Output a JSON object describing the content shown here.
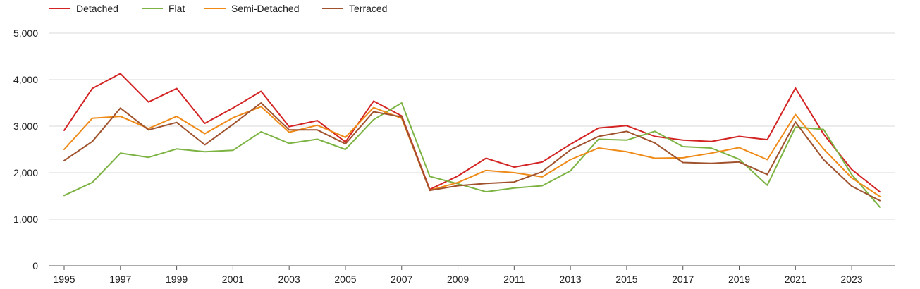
{
  "chart_data": {
    "type": "line",
    "title": "",
    "xlabel": "",
    "ylabel": "",
    "x": [
      1995,
      1996,
      1997,
      1998,
      1999,
      2000,
      2001,
      2002,
      2003,
      2004,
      2005,
      2006,
      2007,
      2008,
      2009,
      2010,
      2011,
      2012,
      2013,
      2014,
      2015,
      2016,
      2017,
      2018,
      2019,
      2020,
      2021,
      2022,
      2023,
      2024
    ],
    "x_tick_labels": [
      "1995",
      "1997",
      "1999",
      "2001",
      "2003",
      "2005",
      "2007",
      "2009",
      "2011",
      "2013",
      "2015",
      "2017",
      "2019",
      "2021",
      "2023"
    ],
    "y_tick_labels": [
      "0",
      "1,000",
      "2,000",
      "3,000",
      "4,000",
      "5,000"
    ],
    "ylim": [
      0,
      5000
    ],
    "grid": "horizontal",
    "legend_position": "top-left",
    "series": [
      {
        "name": "Detached",
        "color": "#d32323",
        "values": [
          2910,
          3810,
          4130,
          3520,
          3810,
          3060,
          3390,
          3750,
          2990,
          3120,
          2660,
          3540,
          3220,
          1640,
          1930,
          2310,
          2120,
          2230,
          2610,
          2960,
          3010,
          2780,
          2700,
          2670,
          2780,
          2710,
          3820,
          2830,
          2070,
          1590
        ]
      },
      {
        "name": "Flat",
        "color": "#7cb342",
        "values": [
          1510,
          1790,
          2420,
          2330,
          2510,
          2450,
          2480,
          2880,
          2630,
          2720,
          2500,
          3140,
          3500,
          1920,
          1760,
          1590,
          1670,
          1720,
          2040,
          2720,
          2700,
          2890,
          2560,
          2530,
          2290,
          1730,
          2980,
          2930,
          1960,
          1260
        ]
      },
      {
        "name": "Semi-Detached",
        "color": "#ef8a17",
        "values": [
          2500,
          3170,
          3210,
          2950,
          3210,
          2840,
          3180,
          3420,
          2870,
          3020,
          2760,
          3400,
          3170,
          1620,
          1790,
          2050,
          2000,
          1910,
          2280,
          2530,
          2450,
          2310,
          2320,
          2420,
          2540,
          2280,
          3250,
          2510,
          1890,
          1490
        ]
      },
      {
        "name": "Terraced",
        "color": "#a0522d",
        "values": [
          2260,
          2670,
          3390,
          2920,
          3080,
          2600,
          3040,
          3500,
          2920,
          2920,
          2620,
          3310,
          3200,
          1620,
          1720,
          1770,
          1800,
          2020,
          2490,
          2780,
          2890,
          2640,
          2220,
          2200,
          2230,
          1960,
          3090,
          2280,
          1710,
          1400
        ]
      }
    ]
  }
}
